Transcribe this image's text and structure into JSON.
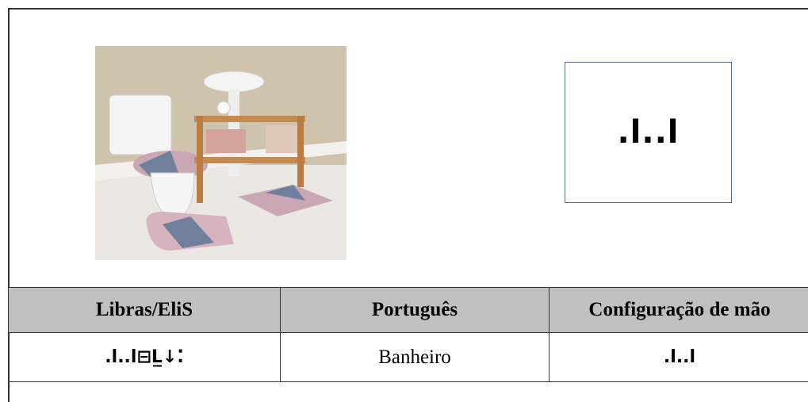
{
  "hand_config_box": {
    "text": ".l..l"
  },
  "table": {
    "headers": [
      "Libras/EliS",
      "Português",
      "Configuração de mão"
    ],
    "rows": [
      [
        ".l..l⊟L̲↓⁚",
        "Banheiro",
        ".l..l"
      ]
    ]
  }
}
